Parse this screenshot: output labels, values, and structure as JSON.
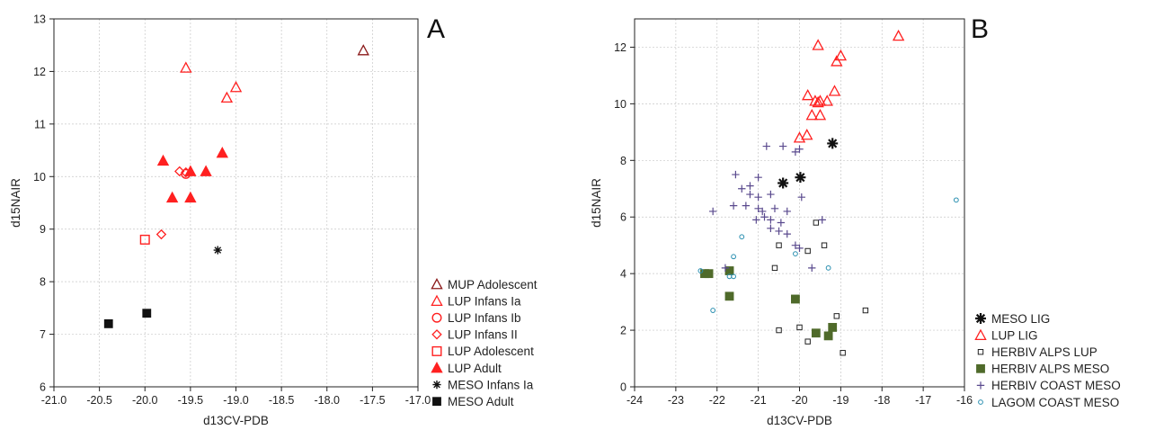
{
  "chart_data": [
    {
      "type": "scatter",
      "panel_label": "A",
      "xlabel": "d13CV-PDB",
      "ylabel": "d15NAIR",
      "xlim": [
        -21.0,
        -17.0
      ],
      "ylim": [
        6,
        13
      ],
      "xticks": [
        -21.0,
        -20.5,
        -20.0,
        -19.5,
        -19.0,
        -18.5,
        -18.0,
        -17.5,
        -17.0
      ],
      "xtick_labels": [
        "-21.0",
        "-20.5",
        "-20.0",
        "-19.5",
        "-19.0",
        "-18.5",
        "-18.0",
        "-17.5",
        "-17.0"
      ],
      "yticks": [
        6,
        7,
        8,
        9,
        10,
        11,
        12,
        13
      ],
      "ytick_labels": [
        "6",
        "7",
        "8",
        "9",
        "10",
        "11",
        "12",
        "13"
      ],
      "grid": true,
      "legend_position": "outside-bottom-right",
      "series": [
        {
          "name": "MUP Adolescent",
          "marker": "triangle-open",
          "color": "#8b1a1a",
          "points": [
            [
              -17.6,
              12.4
            ]
          ]
        },
        {
          "name": "LUP Infans Ia",
          "marker": "triangle-open",
          "color": "#ff2020",
          "points": [
            [
              -19.55,
              12.07
            ],
            [
              -19.0,
              11.7
            ],
            [
              -19.1,
              11.5
            ]
          ]
        },
        {
          "name": "LUP Infans Ib",
          "marker": "circle-open",
          "color": "#ff2020",
          "points": [
            [
              -19.55,
              10.05
            ]
          ]
        },
        {
          "name": "LUP Infans II",
          "marker": "diamond-open",
          "color": "#ff2020",
          "points": [
            [
              -19.62,
              10.1
            ],
            [
              -19.55,
              10.08
            ],
            [
              -19.82,
              8.9
            ]
          ]
        },
        {
          "name": "LUP Adolescent",
          "marker": "square-open",
          "color": "#ff2020",
          "points": [
            [
              -20.0,
              8.8
            ]
          ]
        },
        {
          "name": "LUP Adult",
          "marker": "triangle-filled",
          "color": "#ff2020",
          "points": [
            [
              -19.8,
              10.3
            ],
            [
              -19.15,
              10.45
            ],
            [
              -19.5,
              10.1
            ],
            [
              -19.33,
              10.1
            ],
            [
              -19.7,
              9.6
            ],
            [
              -19.5,
              9.6
            ]
          ]
        },
        {
          "name": "MESO Infans Ia",
          "marker": "asterisk",
          "color": "#111111",
          "points": [
            [
              -19.2,
              8.6
            ]
          ]
        },
        {
          "name": "MESO Adult",
          "marker": "square-filled",
          "color": "#111111",
          "points": [
            [
              -20.4,
              7.2
            ],
            [
              -19.98,
              7.4
            ]
          ]
        }
      ]
    },
    {
      "type": "scatter",
      "panel_label": "B",
      "xlabel": "d13CV-PDB",
      "ylabel": "d15NAIR",
      "xlim": [
        -24,
        -16
      ],
      "ylim": [
        0,
        13
      ],
      "xticks": [
        -24,
        -23,
        -22,
        -21,
        -20,
        -19,
        -18,
        -17,
        -16
      ],
      "xtick_labels": [
        "-24",
        "-23",
        "-22",
        "-21",
        "-20",
        "-19",
        "-18",
        "-17",
        "-16"
      ],
      "yticks": [
        0,
        2,
        4,
        6,
        8,
        10,
        12
      ],
      "ytick_labels": [
        "0",
        "2",
        "4",
        "6",
        "8",
        "10",
        "12"
      ],
      "grid": true,
      "legend_position": "outside-bottom-right",
      "series": [
        {
          "name": "MESO LIG",
          "marker": "asterisk-large",
          "color": "#111111",
          "points": [
            [
              -20.4,
              7.2
            ],
            [
              -19.98,
              7.4
            ],
            [
              -19.2,
              8.6
            ]
          ]
        },
        {
          "name": "LUP LIG",
          "marker": "triangle-open",
          "color": "#ff2020",
          "points": [
            [
              -19.55,
              12.07
            ],
            [
              -19.0,
              11.7
            ],
            [
              -19.1,
              11.5
            ],
            [
              -19.15,
              10.45
            ],
            [
              -19.8,
              10.3
            ],
            [
              -19.5,
              10.1
            ],
            [
              -19.33,
              10.1
            ],
            [
              -19.62,
              10.1
            ],
            [
              -19.55,
              10.05
            ],
            [
              -19.7,
              9.6
            ],
            [
              -19.5,
              9.6
            ],
            [
              -20.0,
              8.8
            ],
            [
              -19.82,
              8.9
            ],
            [
              -17.6,
              12.4
            ]
          ]
        },
        {
          "name": "HERBIV ALPS LUP",
          "marker": "square-open-small",
          "color": "#222222",
          "points": [
            [
              -19.6,
              5.8
            ],
            [
              -19.4,
              5.0
            ],
            [
              -20.5,
              5.0
            ],
            [
              -20.6,
              4.2
            ],
            [
              -19.8,
              4.8
            ],
            [
              -19.1,
              2.5
            ],
            [
              -18.4,
              2.7
            ],
            [
              -20.5,
              2.0
            ],
            [
              -20.0,
              2.1
            ],
            [
              -19.8,
              1.6
            ],
            [
              -18.95,
              1.2
            ]
          ]
        },
        {
          "name": "HERBIV ALPS MESO",
          "marker": "square-filled",
          "color": "#4f6a2a",
          "points": [
            [
              -22.3,
              4.0
            ],
            [
              -22.2,
              4.0
            ],
            [
              -21.7,
              4.1
            ],
            [
              -21.7,
              3.2
            ],
            [
              -20.1,
              3.1
            ],
            [
              -19.2,
              2.1
            ],
            [
              -19.6,
              1.9
            ],
            [
              -19.3,
              1.8
            ]
          ]
        },
        {
          "name": "HERBIV COAST MESO",
          "marker": "plus",
          "color": "#5a4a8e",
          "points": [
            [
              -20.8,
              8.5
            ],
            [
              -20.4,
              8.5
            ],
            [
              -20.1,
              8.3
            ],
            [
              -20.0,
              8.4
            ],
            [
              -21.55,
              7.5
            ],
            [
              -21.0,
              7.4
            ],
            [
              -21.2,
              7.1
            ],
            [
              -21.4,
              7.0
            ],
            [
              -20.7,
              6.8
            ],
            [
              -21.2,
              6.8
            ],
            [
              -21.0,
              6.7
            ],
            [
              -19.95,
              6.7
            ],
            [
              -21.6,
              6.4
            ],
            [
              -21.3,
              6.4
            ],
            [
              -21.0,
              6.3
            ],
            [
              -20.9,
              6.2
            ],
            [
              -20.6,
              6.3
            ],
            [
              -20.3,
              6.2
            ],
            [
              -22.1,
              6.2
            ],
            [
              -20.85,
              6.0
            ],
            [
              -20.7,
              5.9
            ],
            [
              -21.05,
              5.9
            ],
            [
              -20.45,
              5.8
            ],
            [
              -20.5,
              5.5
            ],
            [
              -20.3,
              5.4
            ],
            [
              -20.7,
              5.6
            ],
            [
              -20.1,
              5.0
            ],
            [
              -20.0,
              4.9
            ],
            [
              -19.45,
              5.9
            ],
            [
              -21.8,
              4.2
            ],
            [
              -19.7,
              4.2
            ]
          ]
        },
        {
          "name": "LAGOM  COAST MESO",
          "marker": "circle-open-small",
          "color": "#2a8fb0",
          "points": [
            [
              -22.4,
              4.1
            ],
            [
              -22.1,
              2.7
            ],
            [
              -21.7,
              3.9
            ],
            [
              -21.6,
              3.9
            ],
            [
              -21.6,
              4.6
            ],
            [
              -21.4,
              5.3
            ],
            [
              -20.1,
              4.7
            ],
            [
              -19.3,
              4.2
            ],
            [
              -16.2,
              6.6
            ]
          ]
        }
      ]
    }
  ]
}
